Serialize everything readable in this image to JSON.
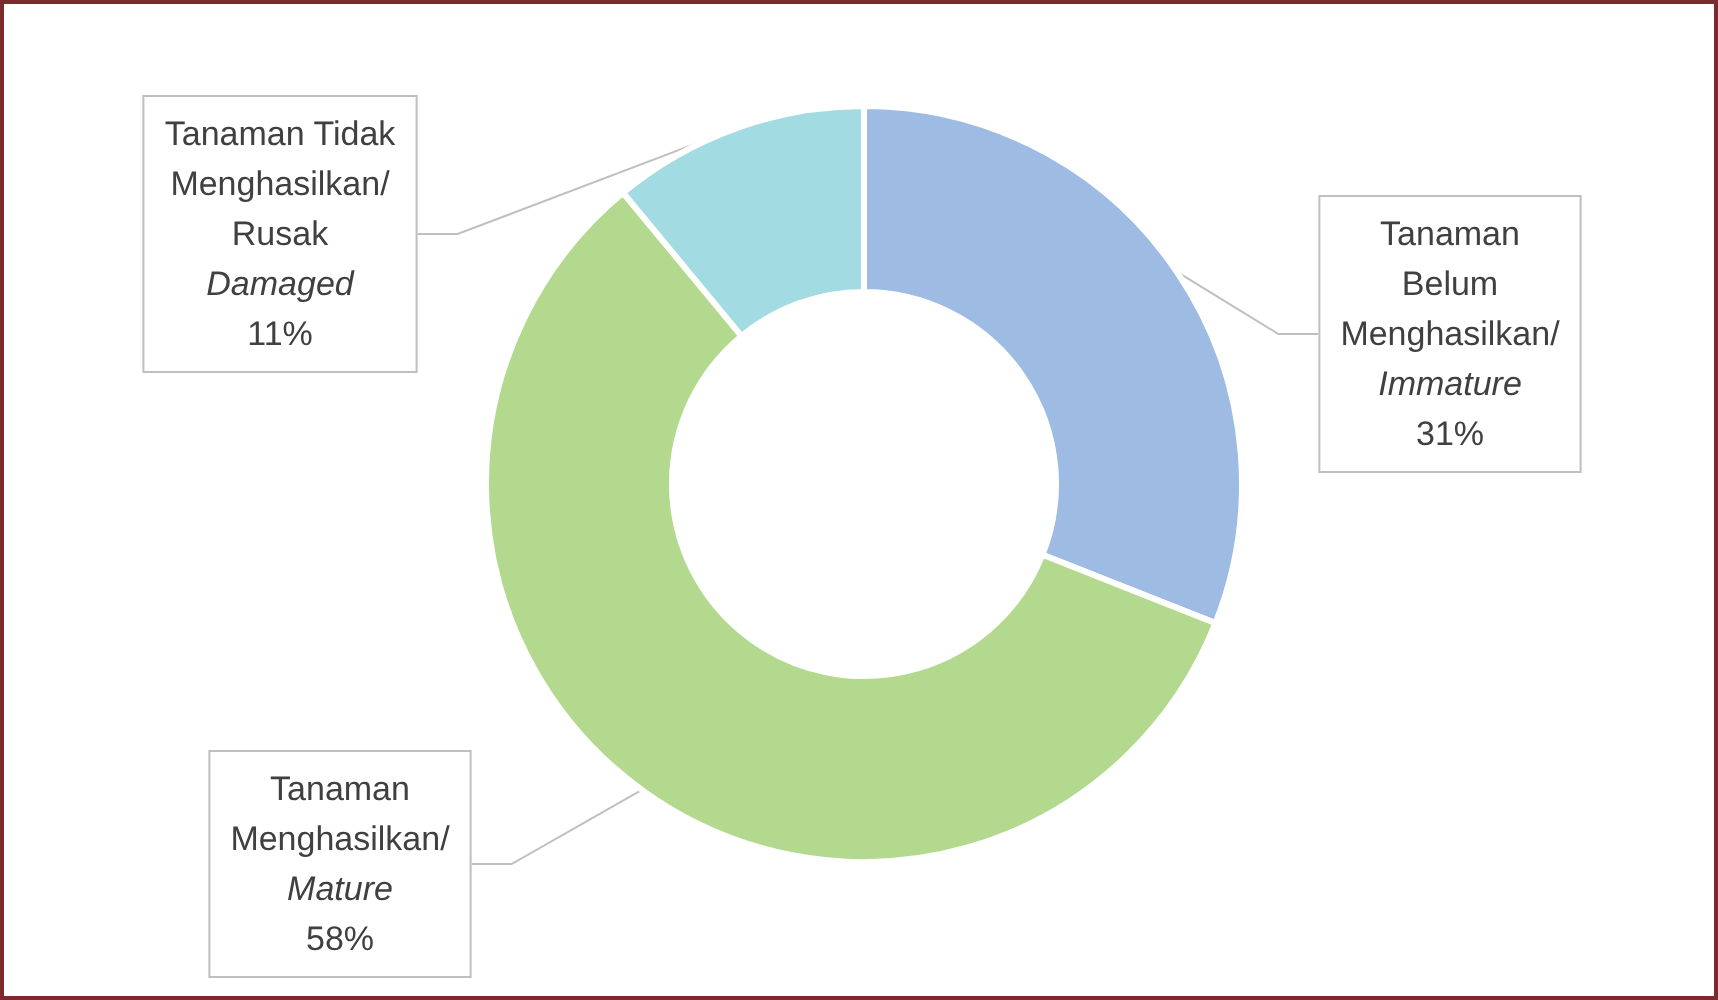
{
  "chart_data": {
    "type": "donut",
    "categories": [
      "Tanaman\nBelum\nMenghasilkan/\nImmature",
      "Tanaman\nMenghasilkan/\nMature",
      "Tanaman Tidak\nMenghasilkan/\nRusak\nDamaged"
    ],
    "values": [
      31,
      58,
      11
    ],
    "value_labels": [
      "31%",
      "58%",
      "11%"
    ],
    "colors": [
      "#9dbbe3",
      "#b3d98f",
      "#a3dbe3"
    ],
    "legend": false
  }
}
